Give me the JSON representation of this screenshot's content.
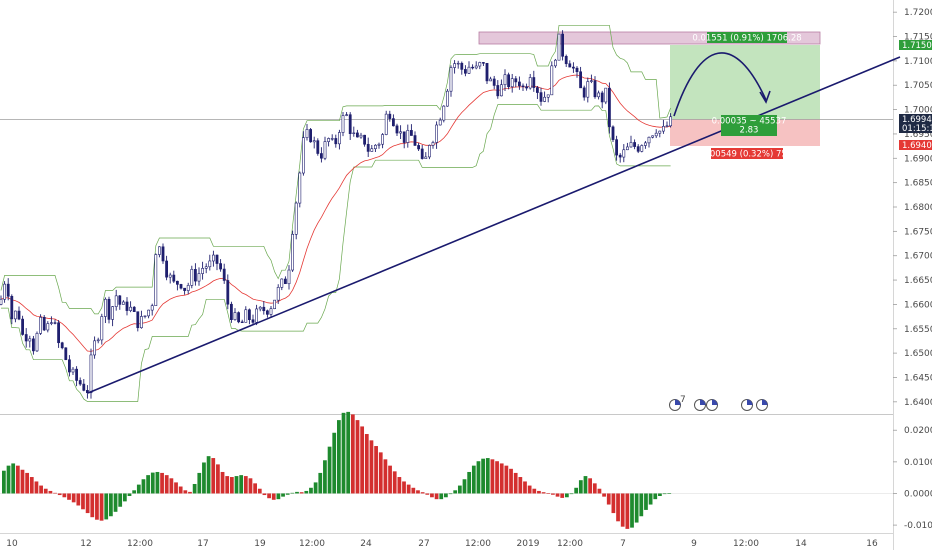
{
  "colors": {
    "up": "#1e8a2e",
    "down": "#d32f2f",
    "candle": "#1f1f6e",
    "ma": "#e53935",
    "channel": "#6aa84f",
    "trend": "#1a1a6e",
    "profit_zone": "#b9dfb3",
    "loss_zone": "#f4b7b7",
    "resistance_zone": "#e2c2d7"
  },
  "chart_data": [
    {
      "type": "candlestick",
      "title": "",
      "ylim": [
        1.6375,
        1.7225
      ],
      "y_ticks": [
        1.64,
        1.645,
        1.65,
        1.655,
        1.66,
        1.665,
        1.67,
        1.675,
        1.68,
        1.685,
        1.69,
        1.695,
        1.7,
        1.705,
        1.71,
        1.715,
        1.72
      ],
      "y_tick_labels": [
        "1.64000",
        "1.64500",
        "1.65000",
        "1.65500",
        "1.66000",
        "1.66500",
        "1.67000",
        "1.67500",
        "1.68000",
        "1.68500",
        "1.69000",
        "1.69500",
        "1.70000",
        "1.70500",
        "1.71000",
        "1.71500",
        "1.72000"
      ],
      "x_tick_labels": [
        "10",
        "12",
        "12:00",
        "17",
        "19",
        "12:00",
        "24",
        "27",
        "12:00",
        "2019",
        "12:00",
        "7",
        "9",
        "12:00",
        "14",
        "16"
      ],
      "price_path": [
        [
          0,
          1.66
        ],
        [
          6,
          1.6665
        ],
        [
          12,
          1.657
        ],
        [
          18,
          1.659
        ],
        [
          24,
          1.652
        ],
        [
          28,
          1.6555
        ],
        [
          34,
          1.651
        ],
        [
          40,
          1.656
        ],
        [
          46,
          1.654
        ],
        [
          52,
          1.658
        ],
        [
          58,
          1.652
        ],
        [
          64,
          1.65
        ],
        [
          70,
          1.646
        ],
        [
          76,
          1.6445
        ],
        [
          82,
          1.6435
        ],
        [
          88,
          1.6425
        ],
        [
          92,
          1.65
        ],
        [
          98,
          1.654
        ],
        [
          104,
          1.661
        ],
        [
          110,
          1.658
        ],
        [
          116,
          1.662
        ],
        [
          122,
          1.659
        ],
        [
          128,
          1.66
        ],
        [
          134,
          1.6575
        ],
        [
          140,
          1.656
        ],
        [
          146,
          1.658
        ],
        [
          152,
          1.66
        ],
        [
          156,
          1.672
        ],
        [
          162,
          1.671
        ],
        [
          168,
          1.666
        ],
        [
          174,
          1.664
        ],
        [
          180,
          1.665
        ],
        [
          186,
          1.663
        ],
        [
          192,
          1.666
        ],
        [
          198,
          1.666
        ],
        [
          204,
          1.668
        ],
        [
          210,
          1.668
        ],
        [
          216,
          1.669
        ],
        [
          222,
          1.6665
        ],
        [
          228,
          1.66
        ],
        [
          234,
          1.657
        ],
        [
          240,
          1.6555
        ],
        [
          246,
          1.6575
        ],
        [
          252,
          1.657
        ],
        [
          258,
          1.658
        ],
        [
          264,
          1.659
        ],
        [
          270,
          1.6595
        ],
        [
          276,
          1.662
        ],
        [
          282,
          1.664
        ],
        [
          288,
          1.666
        ],
        [
          292,
          1.675
        ],
        [
          298,
          1.684
        ],
        [
          304,
          1.694
        ],
        [
          310,
          1.695
        ],
        [
          316,
          1.692
        ],
        [
          322,
          1.691
        ],
        [
          328,
          1.694
        ],
        [
          334,
          1.692
        ],
        [
          340,
          1.697
        ],
        [
          346,
          1.699
        ],
        [
          352,
          1.695
        ],
        [
          358,
          1.693
        ],
        [
          364,
          1.694
        ],
        [
          370,
          1.691
        ],
        [
          376,
          1.693
        ],
        [
          382,
          1.694
        ],
        [
          388,
          1.7005
        ],
        [
          394,
          1.698
        ],
        [
          400,
          1.695
        ],
        [
          406,
          1.694
        ],
        [
          412,
          1.6945
        ],
        [
          418,
          1.692
        ],
        [
          424,
          1.687
        ],
        [
          428,
          1.693
        ],
        [
          434,
          1.695
        ],
        [
          440,
          1.699
        ],
        [
          446,
          1.7035
        ],
        [
          452,
          1.71
        ],
        [
          458,
          1.709
        ],
        [
          464,
          1.708
        ],
        [
          470,
          1.709
        ],
        [
          476,
          1.708
        ],
        [
          482,
          1.7095
        ],
        [
          488,
          1.706
        ],
        [
          494,
          1.705
        ],
        [
          500,
          1.704
        ],
        [
          506,
          1.706
        ],
        [
          512,
          1.705
        ],
        [
          518,
          1.7065
        ],
        [
          524,
          1.704
        ],
        [
          530,
          1.708
        ],
        [
          536,
          1.705
        ],
        [
          542,
          1.702
        ],
        [
          548,
          1.704
        ],
        [
          552,
          1.708
        ],
        [
          558,
          1.7145
        ],
        [
          564,
          1.711
        ],
        [
          570,
          1.71
        ],
        [
          576,
          1.707
        ],
        [
          582,
          1.703
        ],
        [
          588,
          1.705
        ],
        [
          594,
          1.704
        ],
        [
          600,
          1.702
        ],
        [
          606,
          1.703
        ],
        [
          610,
          1.696
        ],
        [
          616,
          1.69
        ],
        [
          620,
          1.69
        ],
        [
          626,
          1.6915
        ],
        [
          632,
          1.6925
        ],
        [
          638,
          1.6925
        ],
        [
          644,
          1.694
        ],
        [
          650,
          1.695
        ],
        [
          656,
          1.6965
        ],
        [
          662,
          1.695
        ],
        [
          668,
          1.697
        ],
        [
          674,
          1.6975
        ]
      ],
      "current_price": "1.69949",
      "countdown": "01:15:14",
      "target_price": "1.71500",
      "stop_price": "1.69400"
    },
    {
      "type": "bar",
      "title": "",
      "ylim": [
        -0.0125,
        0.0245
      ],
      "y_ticks": [
        -0.01,
        0,
        0.01,
        0.02
      ],
      "y_tick_labels": [
        "-0.0100",
        "0.0000",
        "0.0100",
        "0.0200"
      ],
      "series": [
        {
          "values": [
            0.0072,
            0.0088,
            0.0095,
            0.0088,
            0.0075,
            0.0065,
            0.0052,
            0.0038,
            0.0025,
            0.0015,
            0.0008,
            0.0002,
            -0.0005,
            -0.0012,
            -0.002,
            -0.0028,
            -0.0038,
            -0.005,
            -0.0062,
            -0.0075,
            -0.0083,
            -0.0086,
            -0.0082,
            -0.0072,
            -0.0058,
            -0.0042,
            -0.0025,
            -0.0008,
            0.001,
            0.0028,
            0.0045,
            0.0058,
            0.0066,
            0.0068,
            0.0065,
            0.0058,
            0.0048,
            0.0035,
            0.0022,
            0.001,
            0.0005,
            0.003,
            0.0065,
            0.0098,
            0.0118,
            0.0112,
            0.0092,
            0.0068,
            0.0055,
            0.0052,
            0.0055,
            0.0058,
            0.0055,
            0.0048,
            0.0032,
            0.0015,
            -0.0005,
            -0.0015,
            -0.002,
            -0.0018,
            -0.001,
            -0.0004,
            0.0002,
            0.0005,
            0.0004,
            0.0008,
            0.0018,
            0.0035,
            0.0065,
            0.0105,
            0.0148,
            0.0192,
            0.0232,
            0.0255,
            0.0258,
            0.025,
            0.0232,
            0.0212,
            0.0188,
            0.0168,
            0.015,
            0.013,
            0.0108,
            0.0088,
            0.007,
            0.0052,
            0.0038,
            0.0028,
            0.0018,
            0.001,
            0.0004,
            -0.0004,
            -0.0012,
            -0.0018,
            -0.0018,
            -0.0012,
            -0.0002,
            0.001,
            0.0025,
            0.0045,
            0.0068,
            0.0088,
            0.0102,
            0.011,
            0.0112,
            0.0108,
            0.0102,
            0.0095,
            0.0088,
            0.0078,
            0.0065,
            0.0052,
            0.0038,
            0.0025,
            0.0015,
            0.0008,
            0.0004,
            0.0001,
            -0.0004,
            -0.001,
            -0.0014,
            -0.0012,
            -0.0002,
            0.0018,
            0.0042,
            0.0055,
            0.0048,
            0.0032,
            0.0015,
            -0.001,
            -0.0035,
            -0.0062,
            -0.0088,
            -0.0105,
            -0.0112,
            -0.0108,
            -0.0092,
            -0.0072,
            -0.0052,
            -0.0035,
            -0.0018,
            -0.0008,
            -0.0002,
            0.0001
          ]
        }
      ]
    }
  ],
  "annotations": {
    "target_label": "0.01551 (0.91%) 1706.28",
    "entry_label": "0.00035 ~ 45537",
    "ratio_label": "2.83",
    "stop_label": "0.00549 (0.32%) 750",
    "event_count": "7"
  }
}
